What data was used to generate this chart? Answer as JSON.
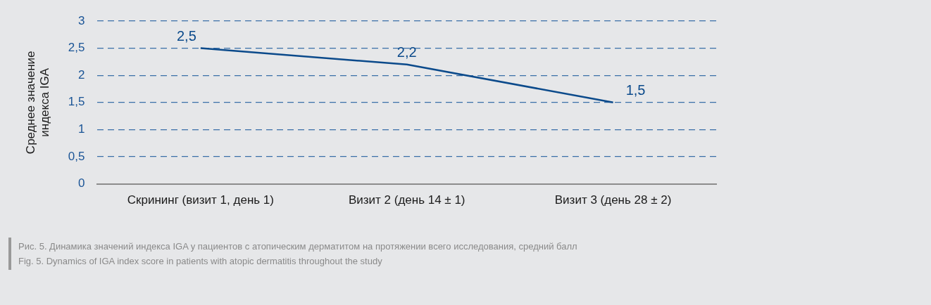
{
  "chart_data": {
    "type": "line",
    "ylabel": "Среднее значение\nиндекса IGA",
    "categories": [
      "Скрининг (визит 1, день 1)",
      "Визит 2 (день 14 ± 1)",
      "Визит 3 (день 28 ± 2)"
    ],
    "series": [
      {
        "color": "#0b4a8b",
        "values": [
          2.5,
          2.2,
          1.5
        ],
        "value_labels": [
          "2,5",
          "2,2",
          "1,5"
        ]
      }
    ],
    "ylim": [
      0,
      3
    ],
    "yticks": [
      {
        "value": 0,
        "label": "0"
      },
      {
        "value": 0.5,
        "label": "0,5"
      },
      {
        "value": 1,
        "label": "1"
      },
      {
        "value": 1.5,
        "label": "1,5"
      },
      {
        "value": 2,
        "label": "2"
      },
      {
        "value": 2.5,
        "label": "2,5"
      },
      {
        "value": 3,
        "label": "3"
      }
    ],
    "grid": "y",
    "line_style": "solid",
    "marker": "none",
    "legend": false,
    "annotations": [
      "Рис. 5. Динамика значений индекса IGA у пациентов с атопическим дерматитом на протяжении всего исследования, средний балл",
      "Fig. 5. Dynamics of IGA index score in patients with atopic dermatitis throughout the study"
    ]
  }
}
